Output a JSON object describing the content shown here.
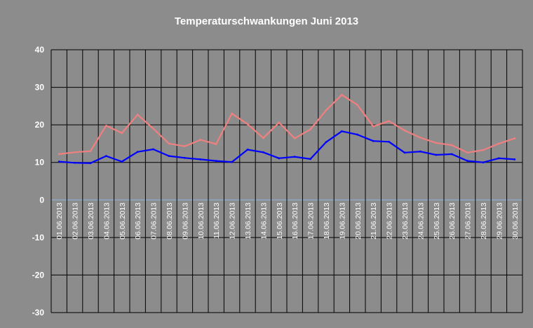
{
  "chart_data": {
    "type": "line",
    "title": "Temperaturschwankungen Juni 2013",
    "xlabel": "",
    "ylabel": "",
    "ylim": [
      -30,
      40
    ],
    "yticks": [
      -30,
      -20,
      -10,
      0,
      10,
      20,
      30,
      40
    ],
    "grid": true,
    "legend": "none",
    "categories": [
      "01.06.2013",
      "02.06.2013",
      "03.06.2013",
      "04.06.2013",
      "05.06.2013",
      "06.06.2013",
      "07.06.2013",
      "08.06.2013",
      "09.06.2013",
      "10.06.2013",
      "11.06.2013",
      "12.06.2013",
      "13.06.2013",
      "14.06.2013",
      "15.06.2013",
      "16.06.2013",
      "17.06.2013",
      "18.06.2013",
      "19.06.2013",
      "20.06.2013",
      "21.06.2013",
      "22.06.2013",
      "23.06.2013",
      "24.06.2013",
      "25.06.2013",
      "26.06.2013",
      "27.06.2013",
      "28.06.2013",
      "29.06.2013",
      "30.06.2013"
    ],
    "series": [
      {
        "color": "#f08080",
        "values": [
          12.2,
          12.7,
          13.0,
          19.8,
          17.8,
          22.7,
          19.0,
          15.0,
          14.3,
          16.0,
          14.9,
          23.0,
          20.2,
          16.5,
          20.6,
          16.4,
          18.8,
          23.9,
          28.0,
          25.3,
          19.6,
          21.0,
          18.5,
          16.6,
          15.2,
          14.6,
          12.6,
          13.3,
          15.0,
          16.4
        ]
      },
      {
        "color": "#0000ff",
        "values": [
          10.2,
          9.9,
          9.8,
          11.7,
          10.2,
          12.8,
          13.5,
          11.7,
          11.2,
          10.8,
          10.4,
          10.1,
          13.4,
          12.7,
          11.1,
          11.5,
          10.9,
          15.4,
          18.3,
          17.4,
          15.7,
          15.5,
          12.6,
          12.9,
          12.0,
          12.2,
          10.4,
          10.0,
          11.1,
          10.8
        ]
      }
    ],
    "colors": {
      "background": "#8c8c8c",
      "grid": "#000000",
      "zero_line": "#8fb4e0",
      "text": "#ffffff"
    }
  }
}
